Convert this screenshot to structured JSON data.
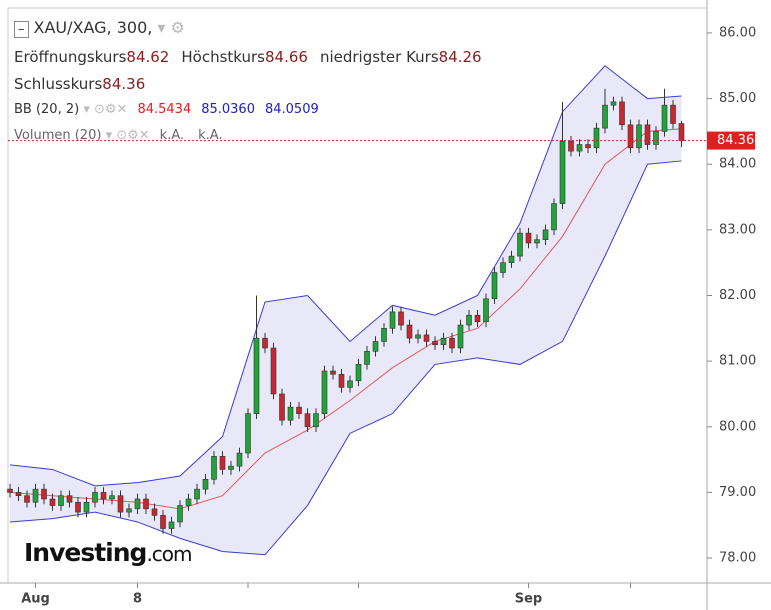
{
  "chart_data": {
    "type": "candlestick",
    "title": "XAU/XAG, 300,",
    "ohlc_labels": [
      "Eröffnungskurs",
      "Höchstkurs",
      "niedrigster Kurs",
      "Schlusskurs"
    ],
    "bb_name": "BB (20, 2)",
    "bb_values": [
      "84.5434",
      "85.0360",
      "84.0509"
    ],
    "volume_name": "Volumen (20)",
    "volume_values": [
      "k.A.",
      "k.A."
    ],
    "logo": {
      "name": "Investing",
      "suffix": ".com"
    },
    "ylim": [
      77.62,
      86.38
    ],
    "yticks": [
      {
        "value": 78,
        "label": "78.00"
      },
      {
        "value": 79,
        "label": "79.00"
      },
      {
        "value": 80,
        "label": "80.00"
      },
      {
        "value": 81,
        "label": "81.00"
      },
      {
        "value": 82,
        "label": "82.00"
      },
      {
        "value": 83,
        "label": "83.00"
      },
      {
        "value": 84,
        "label": "84.00"
      },
      {
        "value": 85,
        "label": "85.00"
      },
      {
        "value": 86,
        "label": "86.00"
      }
    ],
    "xlabels": [
      {
        "index": 3,
        "label": "Aug"
      },
      {
        "index": 15,
        "label": "8"
      },
      {
        "index": 61,
        "label": "Sep"
      }
    ],
    "xticks": [
      28,
      41,
      73
    ],
    "up_color": "#22a339",
    "down_color": "#c8282d",
    "candles": [
      [
        79.05,
        79.13,
        78.92,
        79.0
      ],
      [
        79.0,
        79.08,
        78.87,
        78.95
      ],
      [
        78.95,
        79.03,
        78.77,
        78.85
      ],
      [
        78.85,
        79.13,
        78.77,
        79.05
      ],
      [
        79.05,
        79.13,
        78.82,
        78.9
      ],
      [
        78.9,
        78.98,
        78.72,
        78.8
      ],
      [
        78.8,
        79.03,
        78.72,
        78.95
      ],
      [
        78.95,
        79.03,
        78.77,
        78.85
      ],
      [
        78.85,
        78.93,
        78.62,
        78.7
      ],
      [
        78.7,
        78.93,
        78.62,
        78.85
      ],
      [
        78.85,
        79.08,
        78.77,
        79.0
      ],
      [
        79.0,
        79.08,
        78.82,
        78.9
      ],
      [
        78.9,
        79.03,
        78.82,
        78.95
      ],
      [
        78.95,
        79.03,
        78.62,
        78.7
      ],
      [
        78.7,
        78.83,
        78.62,
        78.75
      ],
      [
        78.75,
        78.98,
        78.67,
        78.9
      ],
      [
        78.9,
        78.98,
        78.67,
        78.75
      ],
      [
        78.75,
        78.83,
        78.57,
        78.65
      ],
      [
        78.65,
        78.73,
        78.37,
        78.45
      ],
      [
        78.45,
        78.63,
        78.37,
        78.55
      ],
      [
        78.55,
        78.88,
        78.47,
        78.8
      ],
      [
        78.8,
        78.98,
        78.72,
        78.9
      ],
      [
        78.9,
        79.13,
        78.82,
        79.05
      ],
      [
        79.05,
        79.28,
        78.97,
        79.2
      ],
      [
        79.2,
        79.63,
        79.12,
        79.55
      ],
      [
        79.55,
        79.63,
        79.27,
        79.35
      ],
      [
        79.35,
        79.48,
        79.27,
        79.4
      ],
      [
        79.4,
        79.68,
        79.32,
        79.6
      ],
      [
        79.6,
        80.28,
        79.52,
        80.2
      ],
      [
        80.2,
        82.0,
        80.12,
        81.35
      ],
      [
        81.35,
        81.43,
        81.12,
        81.2
      ],
      [
        81.2,
        81.28,
        80.42,
        80.5
      ],
      [
        80.5,
        80.58,
        80.02,
        80.1
      ],
      [
        80.1,
        80.38,
        80.02,
        80.3
      ],
      [
        80.3,
        80.38,
        80.12,
        80.2
      ],
      [
        80.2,
        80.28,
        79.92,
        80.0
      ],
      [
        80.0,
        80.28,
        79.92,
        80.2
      ],
      [
        80.2,
        80.93,
        80.12,
        80.85
      ],
      [
        80.85,
        80.93,
        80.72,
        80.8
      ],
      [
        80.8,
        80.88,
        80.52,
        80.6
      ],
      [
        80.6,
        80.78,
        80.52,
        80.7
      ],
      [
        80.7,
        81.03,
        80.62,
        80.95
      ],
      [
        80.95,
        81.23,
        80.87,
        81.15
      ],
      [
        81.15,
        81.38,
        81.07,
        81.3
      ],
      [
        81.3,
        81.58,
        81.22,
        81.5
      ],
      [
        81.5,
        81.83,
        81.42,
        81.75
      ],
      [
        81.75,
        81.83,
        81.47,
        81.55
      ],
      [
        81.55,
        81.63,
        81.27,
        81.35
      ],
      [
        81.35,
        81.48,
        81.27,
        81.4
      ],
      [
        81.4,
        81.48,
        81.22,
        81.3
      ],
      [
        81.3,
        81.38,
        81.17,
        81.25
      ],
      [
        81.25,
        81.43,
        81.17,
        81.35
      ],
      [
        81.35,
        81.43,
        81.12,
        81.2
      ],
      [
        81.2,
        81.63,
        81.12,
        81.55
      ],
      [
        81.55,
        81.78,
        81.47,
        81.7
      ],
      [
        81.7,
        81.78,
        81.52,
        81.6
      ],
      [
        81.6,
        82.03,
        81.52,
        81.95
      ],
      [
        81.95,
        82.43,
        81.87,
        82.35
      ],
      [
        82.35,
        82.58,
        82.27,
        82.5
      ],
      [
        82.5,
        82.68,
        82.42,
        82.6
      ],
      [
        82.6,
        83.03,
        82.52,
        82.95
      ],
      [
        82.95,
        83.03,
        82.72,
        82.8
      ],
      [
        82.8,
        82.93,
        82.72,
        82.85
      ],
      [
        82.85,
        83.08,
        82.77,
        83.0
      ],
      [
        83.0,
        83.48,
        82.92,
        83.4
      ],
      [
        83.4,
        84.95,
        83.32,
        84.35
      ],
      [
        84.35,
        84.43,
        84.12,
        84.2
      ],
      [
        84.2,
        84.38,
        84.12,
        84.3
      ],
      [
        84.3,
        84.38,
        84.17,
        84.25
      ],
      [
        84.25,
        84.63,
        84.17,
        84.55
      ],
      [
        84.55,
        85.15,
        84.47,
        84.9
      ],
      [
        84.9,
        85.03,
        84.82,
        84.95
      ],
      [
        84.95,
        85.03,
        84.52,
        84.6
      ],
      [
        84.6,
        84.68,
        84.17,
        84.25
      ],
      [
        84.25,
        84.68,
        84.17,
        84.6
      ],
      [
        84.6,
        84.68,
        84.22,
        84.3
      ],
      [
        84.3,
        84.58,
        84.22,
        84.5
      ],
      [
        84.5,
        85.15,
        84.42,
        84.9
      ],
      [
        84.9,
        84.98,
        84.54,
        84.62
      ],
      [
        84.62,
        84.66,
        84.26,
        84.36
      ]
    ],
    "bands": {
      "x": [
        0,
        5,
        10,
        15,
        20,
        25,
        30,
        35,
        40,
        45,
        50,
        55,
        60,
        65,
        70,
        75,
        79
      ],
      "series": [
        {
          "name": "upper",
          "color": "#3a3ad8",
          "values": [
            79.42,
            79.35,
            79.1,
            79.15,
            79.25,
            79.85,
            81.9,
            82.0,
            81.3,
            81.85,
            81.7,
            82.0,
            83.1,
            84.8,
            85.5,
            85.0,
            85.04
          ]
        },
        {
          "name": "middle",
          "color": "#e05a5a",
          "values": [
            79.0,
            78.95,
            78.9,
            78.85,
            78.75,
            78.95,
            79.6,
            79.95,
            80.4,
            80.9,
            81.3,
            81.5,
            82.1,
            82.9,
            84.0,
            84.5,
            84.54
          ]
        },
        {
          "name": "lower",
          "color": "#3a3ad8",
          "values": [
            78.55,
            78.6,
            78.7,
            78.55,
            78.3,
            78.1,
            78.05,
            78.8,
            79.9,
            80.2,
            80.95,
            81.05,
            80.95,
            81.3,
            82.6,
            84.0,
            84.05
          ]
        }
      ]
    }
  }
}
